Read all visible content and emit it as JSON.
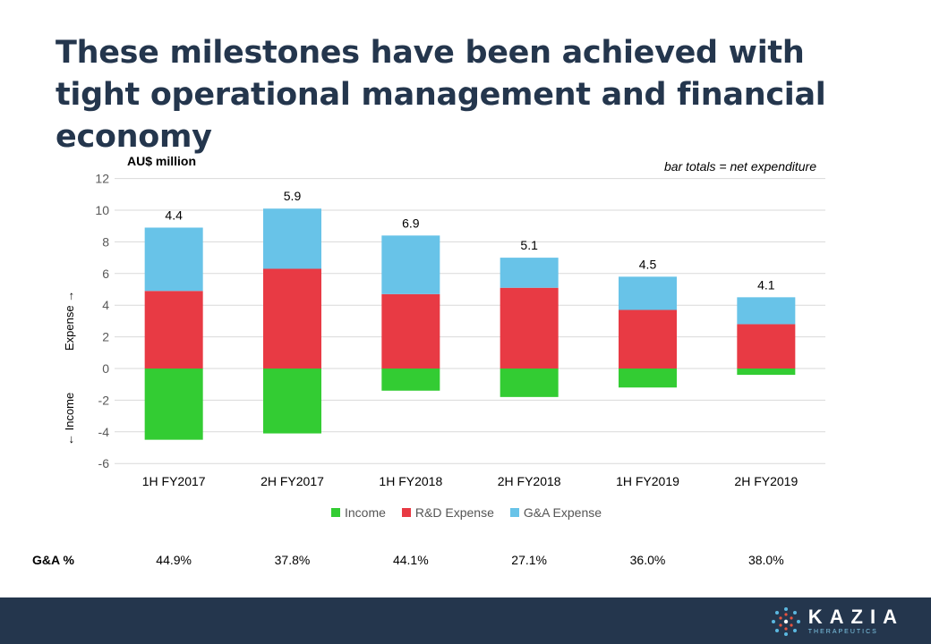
{
  "slide": {
    "title": "These milestones have been achieved with tight operational management and financial economy"
  },
  "chart_data": {
    "type": "bar",
    "stacked": true,
    "units_label": "AU$ million",
    "note": "bar totals = net expenditure",
    "y_axis_side_labels": {
      "expense": "Expense →",
      "income": "← Income"
    },
    "ylim": [
      -6,
      12
    ],
    "yticks": [
      12,
      10,
      8,
      6,
      4,
      2,
      0,
      -2,
      -4,
      -6
    ],
    "grid": true,
    "legend_position": "bottom",
    "categories": [
      "1H FY2017",
      "2H FY2017",
      "1H FY2018",
      "2H FY2018",
      "1H FY2019",
      "2H FY2019"
    ],
    "series": [
      {
        "name": "Income",
        "color": "#33cc33",
        "values": [
          -4.5,
          -4.1,
          -1.4,
          -1.8,
          -1.2,
          -0.4
        ]
      },
      {
        "name": "R&D Expense",
        "color": "#e83a44",
        "values": [
          4.9,
          6.3,
          4.7,
          5.1,
          3.7,
          2.8
        ]
      },
      {
        "name": "G&A Expense",
        "color": "#68c3e8",
        "values": [
          4.0,
          3.8,
          3.7,
          1.9,
          2.1,
          1.7
        ]
      }
    ],
    "totals": [
      "4.4",
      "5.9",
      "6.9",
      "5.1",
      "4.5",
      "4.1"
    ],
    "ga_row": {
      "label": "G&A %",
      "values": [
        "44.9%",
        "37.8%",
        "44.1%",
        "27.1%",
        "36.0%",
        "38.0%"
      ]
    }
  },
  "footer": {
    "logo_word": "KAZIA",
    "logo_sub": "THERAPEUTICS",
    "brand_color": "#24364d"
  }
}
